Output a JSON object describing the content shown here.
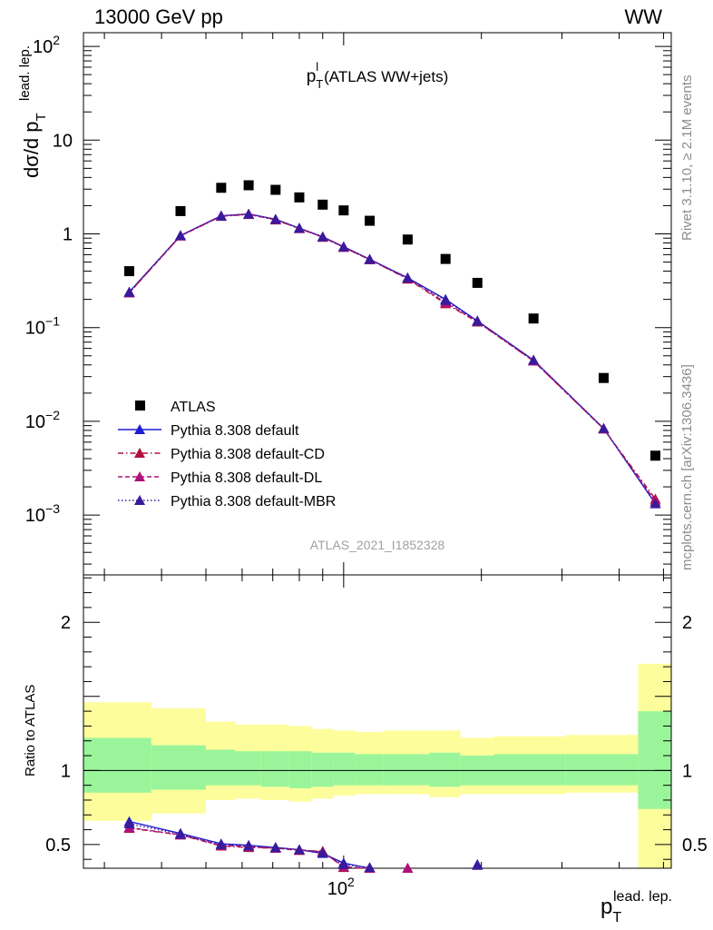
{
  "header": {
    "left": "13000 GeV pp",
    "right": "WW"
  },
  "side_text": {
    "rivet": "Rivet 3.1.10, ≥ 2.1M events",
    "mcplots": "mcplots.cern.ch [arXiv:1306.3436]"
  },
  "colors": {
    "data": "#000000",
    "default": "#1f1fd0",
    "default_cd": "#b0103e",
    "default_dl": "#b0107a",
    "default_mbr": "#3a1a9a",
    "band_inner": "#9af59a",
    "band_outer": "#fdfd9c"
  },
  "chart_data": [
    {
      "type": "scatter",
      "panel": "main",
      "title_main": "p",
      "title_sup": "l",
      "title_sub": "T",
      "title_rest": "(ATLAS WW+jets)",
      "analysis": "ATLAS_2021_I1852328",
      "ylabel": "dσ/d p",
      "ylabel_sub": "T",
      "ylabel_sup": "lead. lep.",
      "xlabel": "p",
      "xlabel_sub": "T",
      "xlabel_sup": "lead. lep.",
      "xscale": "log",
      "yscale": "log",
      "xlim": [
        27,
        520
      ],
      "ylim": [
        0.00023,
        140
      ],
      "x_major_ticks": [
        {
          "value": 100,
          "label": "10",
          "sup": "2"
        }
      ],
      "y_major_ticks": [
        {
          "value": 100,
          "label": "10",
          "sup": "2"
        },
        {
          "value": 10,
          "label": "10",
          "sup": ""
        },
        {
          "value": 1,
          "label": "1",
          "sup": ""
        },
        {
          "value": 0.1,
          "label": "10",
          "sup": "−1"
        },
        {
          "value": 0.01,
          "label": "10",
          "sup": "−2"
        },
        {
          "value": 0.001,
          "label": "10",
          "sup": "−3"
        }
      ],
      "legend_position": "lower-left",
      "x": [
        34,
        44,
        54,
        62,
        71,
        80,
        90,
        100,
        114,
        138,
        167,
        196,
        260,
        370,
        480
      ],
      "series": [
        {
          "name": "ATLAS",
          "style": "square",
          "color": "#000000",
          "values": [
            0.4,
            1.75,
            3.1,
            3.3,
            2.95,
            2.45,
            2.05,
            1.78,
            1.38,
            0.87,
            0.54,
            0.3,
            0.125,
            0.029,
            0.0043
          ]
        },
        {
          "name": "Pythia 8.308 default",
          "style": "solid",
          "color": "#1f1fd0",
          "values": [
            0.24,
            0.96,
            1.56,
            1.63,
            1.43,
            1.15,
            0.93,
            0.73,
            0.535,
            0.34,
            0.2,
            0.118,
            0.045,
            0.0084,
            0.00133
          ]
        },
        {
          "name": "Pythia 8.308 default-CD",
          "style": "dashdot",
          "color": "#b0103e",
          "values": [
            0.235,
            0.95,
            1.54,
            1.61,
            1.41,
            1.14,
            0.92,
            0.72,
            0.53,
            0.33,
            0.18,
            0.115,
            0.044,
            0.0083,
            0.00148
          ]
        },
        {
          "name": "Pythia 8.308 default-DL",
          "style": "dashed",
          "color": "#b0107a",
          "values": [
            0.235,
            0.95,
            1.55,
            1.62,
            1.42,
            1.14,
            0.925,
            0.72,
            0.53,
            0.335,
            0.185,
            0.116,
            0.044,
            0.0083,
            0.0014
          ]
        },
        {
          "name": "Pythia 8.308 default-MBR",
          "style": "dotted",
          "color": "#3a1a9a",
          "values": [
            0.238,
            0.96,
            1.55,
            1.62,
            1.43,
            1.15,
            0.93,
            0.725,
            0.535,
            0.338,
            0.195,
            0.117,
            0.045,
            0.0084,
            0.00132
          ]
        }
      ]
    },
    {
      "type": "line",
      "panel": "ratio",
      "ylabel": "Ratio to ATLAS",
      "xscale": "log",
      "xlim": [
        27,
        520
      ],
      "ylim": [
        0.34,
        2.32
      ],
      "y_major_ticks": [
        {
          "value": 2,
          "label": "2"
        },
        {
          "value": 1,
          "label": "1"
        },
        {
          "value": 0.5,
          "label": "0.5"
        }
      ],
      "bin_edges": [
        27,
        38,
        50,
        58,
        66,
        76,
        85,
        95,
        106,
        122,
        154,
        180,
        213,
        306,
        440,
        520
      ],
      "band_inner": [
        [
          0.85,
          1.22
        ],
        [
          0.87,
          1.17
        ],
        [
          0.9,
          1.14
        ],
        [
          0.9,
          1.13
        ],
        [
          0.89,
          1.13
        ],
        [
          0.88,
          1.13
        ],
        [
          0.89,
          1.12
        ],
        [
          0.9,
          1.12
        ],
        [
          0.9,
          1.11
        ],
        [
          0.9,
          1.11
        ],
        [
          0.89,
          1.12
        ],
        [
          0.9,
          1.1
        ],
        [
          0.9,
          1.11
        ],
        [
          0.9,
          1.11
        ],
        [
          0.74,
          1.4
        ]
      ],
      "band_outer": [
        [
          0.66,
          1.46
        ],
        [
          0.71,
          1.42
        ],
        [
          0.8,
          1.33
        ],
        [
          0.81,
          1.31
        ],
        [
          0.8,
          1.31
        ],
        [
          0.79,
          1.3
        ],
        [
          0.81,
          1.28
        ],
        [
          0.83,
          1.27
        ],
        [
          0.84,
          1.26
        ],
        [
          0.84,
          1.27
        ],
        [
          0.82,
          1.27
        ],
        [
          0.84,
          1.22
        ],
        [
          0.84,
          1.23
        ],
        [
          0.85,
          1.24
        ],
        [
          0.34,
          1.72
        ]
      ],
      "series": [
        {
          "name": "Pythia 8.308 default",
          "x": [
            34,
            44,
            54,
            62,
            71,
            80,
            90,
            100,
            114,
            196
          ],
          "values": [
            0.655,
            0.575,
            0.505,
            0.495,
            0.48,
            0.465,
            0.44,
            0.375,
            0.34,
            0.365
          ]
        },
        {
          "name": "Pythia 8.308 default-CD",
          "x": [
            34,
            44,
            54,
            62,
            71,
            80,
            90,
            100,
            114,
            138
          ],
          "values": [
            0.61,
            0.565,
            0.49,
            0.48,
            0.475,
            0.46,
            0.455,
            0.345,
            0.34,
            0.34
          ]
        },
        {
          "name": "Pythia 8.308 default-DL",
          "x": [
            34,
            44,
            54,
            62,
            71,
            80,
            90,
            100,
            114,
            138
          ],
          "values": [
            0.615,
            0.565,
            0.495,
            0.485,
            0.475,
            0.465,
            0.45,
            0.35,
            0.34,
            0.34
          ]
        },
        {
          "name": "Pythia 8.308 default-MBR",
          "x": [
            34,
            44,
            54,
            62,
            71,
            80,
            90,
            100,
            114,
            196
          ],
          "values": [
            0.64,
            0.57,
            0.5,
            0.49,
            0.48,
            0.465,
            0.445,
            0.365,
            0.345,
            0.36
          ]
        }
      ]
    }
  ]
}
